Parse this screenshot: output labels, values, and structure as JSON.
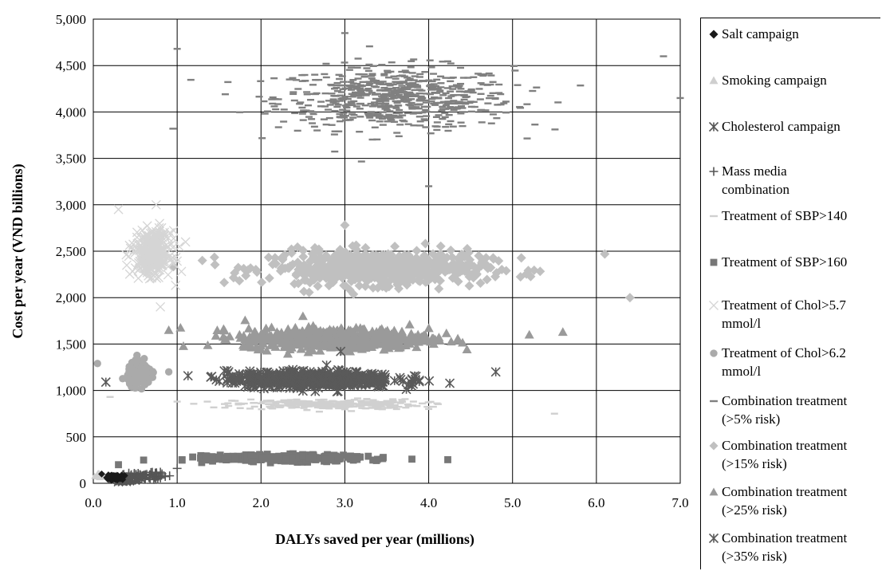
{
  "chart_data": {
    "type": "scatter",
    "xlabel": "DALYs saved per year (millions)",
    "ylabel": "Cost per year (VND billions)",
    "xlim": [
      0,
      7
    ],
    "ylim": [
      0,
      5000
    ],
    "x_ticks": [
      "0.0",
      "1.0",
      "2.0",
      "3.0",
      "4.0",
      "5.0",
      "6.0",
      "7.0"
    ],
    "y_ticks": [
      "0",
      "500",
      "1,000",
      "1,500",
      "2,000",
      "2,500",
      "3,000",
      "3,500",
      "4,000",
      "4,500",
      "5,000"
    ],
    "grid": true,
    "legend_position": "right",
    "series": [
      {
        "name": "Salt campaign",
        "marker": "diamond-small",
        "color": "#1a1a1a",
        "cloud": {
          "x_center": 0.25,
          "x_spread": 0.1,
          "y_center": 65,
          "y_spread": 25,
          "n": 60
        },
        "points": [
          [
            0.18,
            90
          ],
          [
            0.22,
            75
          ],
          [
            0.3,
            55
          ],
          [
            0.35,
            40
          ],
          [
            0.1,
            100
          ]
        ]
      },
      {
        "name": "Smoking campaign",
        "marker": "triangle-small",
        "color": "#cfcfcf",
        "cloud": {
          "x_center": 0.08,
          "x_spread": 0.05,
          "y_center": 85,
          "y_spread": 25,
          "n": 30
        },
        "points": [
          [
            0.05,
            100
          ],
          [
            0.1,
            70
          ]
        ]
      },
      {
        "name": "Cholesterol campaign",
        "marker": "asterisk",
        "color": "#555555",
        "cloud": {
          "x_center": 0.4,
          "x_spread": 0.15,
          "y_center": 40,
          "y_spread": 20,
          "n": 50
        },
        "points": [
          [
            0.35,
            30
          ],
          [
            0.45,
            50
          ]
        ]
      },
      {
        "name": "Mass media\ncombination",
        "marker": "plus",
        "color": "#555555",
        "cloud": {
          "x_center": 0.6,
          "x_spread": 0.3,
          "y_center": 80,
          "y_spread": 35,
          "n": 60
        },
        "points": [
          [
            1.0,
            160
          ],
          [
            0.8,
            120
          ]
        ]
      },
      {
        "name": "Treatment of SBP>140",
        "marker": "dash",
        "color": "#d0d0d0",
        "cloud": {
          "x_center": 2.8,
          "x_spread": 1.1,
          "y_center": 850,
          "y_spread": 55,
          "n": 280
        },
        "points": [
          [
            0.2,
            930
          ],
          [
            4.0,
            800
          ],
          [
            5.5,
            750
          ],
          [
            1.0,
            880
          ]
        ]
      },
      {
        "name": "Treatment of SBP>160",
        "marker": "square",
        "color": "#777777",
        "cloud": {
          "x_center": 2.3,
          "x_spread": 0.9,
          "y_center": 270,
          "y_spread": 35,
          "n": 320
        },
        "points": [
          [
            0.3,
            200
          ],
          [
            0.6,
            250
          ],
          [
            3.8,
            260
          ],
          [
            1.6,
            290
          ]
        ]
      },
      {
        "name": "Treatment of Chol>5.7\nmmol/l",
        "marker": "x",
        "color": "#d5d5d5",
        "cloud": {
          "x_center": 0.7,
          "x_spread": 0.22,
          "y_center": 2480,
          "y_spread": 230,
          "n": 320
        },
        "points": [
          [
            0.75,
            3000
          ],
          [
            0.3,
            2950
          ],
          [
            0.8,
            1900
          ],
          [
            1.1,
            2600
          ]
        ]
      },
      {
        "name": "Treatment of Chol>6.2\nmmol/l",
        "marker": "circle",
        "color": "#aaaaaa",
        "cloud": {
          "x_center": 0.55,
          "x_spread": 0.14,
          "y_center": 1180,
          "y_spread": 120,
          "n": 220
        },
        "points": [
          [
            0.05,
            1290
          ],
          [
            0.9,
            1200
          ]
        ]
      },
      {
        "name": "Combination treatment\n(>5% risk)",
        "marker": "dash",
        "color": "#808080",
        "cloud": {
          "x_center": 3.6,
          "x_spread": 1.4,
          "y_center": 4150,
          "y_spread": 340,
          "n": 650
        },
        "points": [
          [
            1.0,
            4680
          ],
          [
            3.0,
            4850
          ],
          [
            4.0,
            3200
          ],
          [
            6.8,
            4600
          ],
          [
            7.0,
            4150
          ],
          [
            0.95,
            3820
          ]
        ]
      },
      {
        "name": "Combination treatment\n(>15% risk)",
        "marker": "diamond",
        "color": "#c0c0c0",
        "cloud": {
          "x_center": 3.4,
          "x_spread": 1.3,
          "y_center": 2320,
          "y_spread": 180,
          "n": 600
        },
        "points": [
          [
            6.4,
            2000
          ],
          [
            6.1,
            2470
          ],
          [
            3.0,
            2780
          ],
          [
            1.3,
            2400
          ]
        ]
      },
      {
        "name": "Combination treatment\n(>25% risk)",
        "marker": "triangle",
        "color": "#9a9a9a",
        "cloud": {
          "x_center": 2.9,
          "x_spread": 1.1,
          "y_center": 1560,
          "y_spread": 110,
          "n": 600
        },
        "points": [
          [
            0.9,
            1650
          ],
          [
            5.6,
            1630
          ],
          [
            5.2,
            1600
          ],
          [
            2.5,
            1800
          ]
        ]
      },
      {
        "name": "Combination treatment\n(>35% risk)",
        "marker": "asterisk",
        "color": "#5a5a5a",
        "cloud": {
          "x_center": 2.6,
          "x_spread": 1.0,
          "y_center": 1120,
          "y_spread": 85,
          "n": 600
        },
        "points": [
          [
            0.6,
            1170
          ],
          [
            2.95,
            1420
          ],
          [
            4.8,
            1200
          ],
          [
            0.15,
            1090
          ]
        ]
      }
    ]
  }
}
